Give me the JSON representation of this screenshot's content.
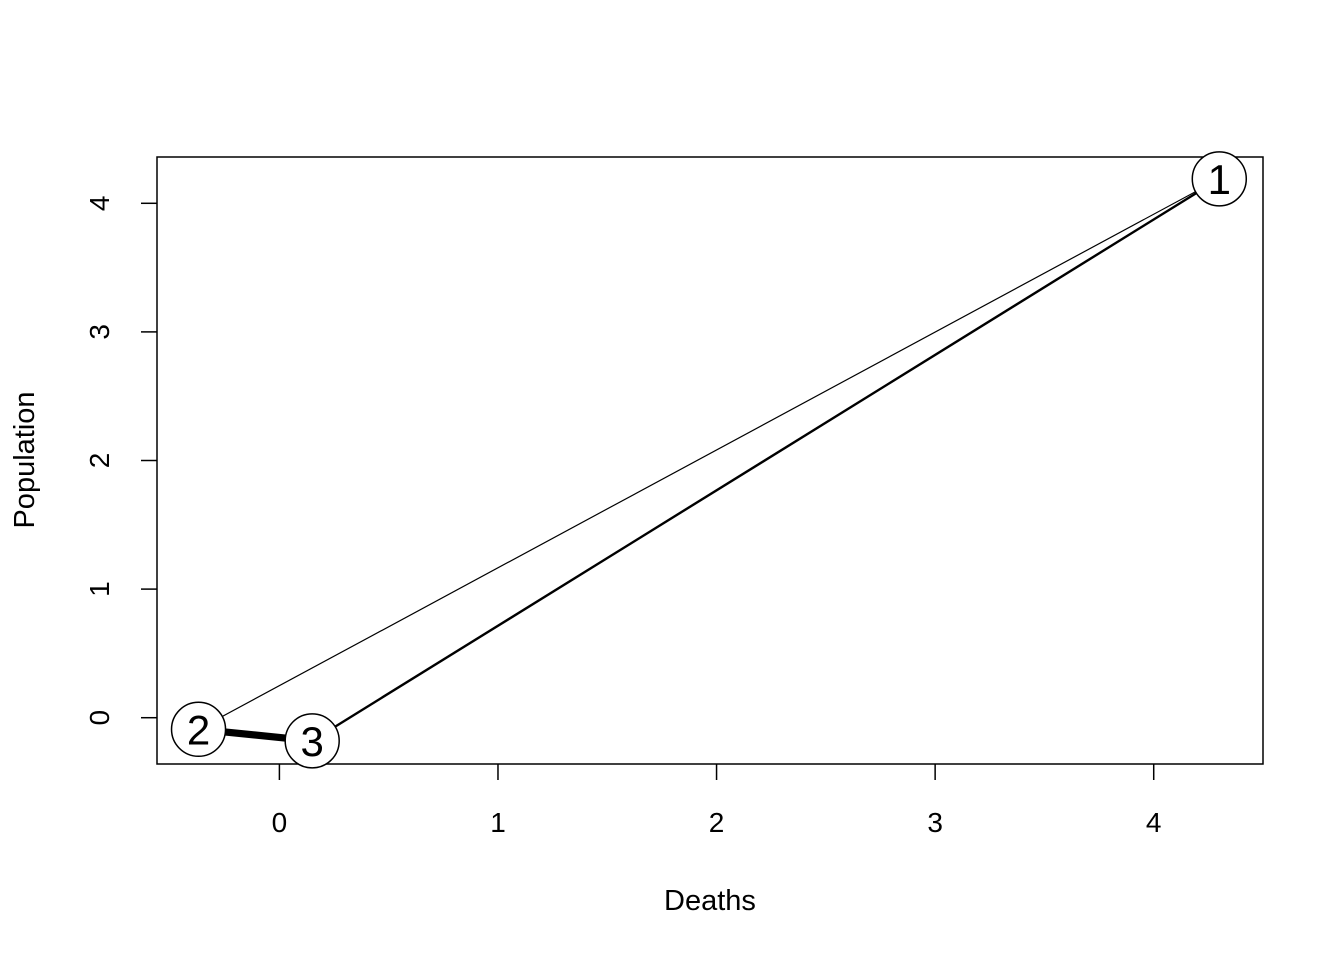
{
  "chart_data": {
    "type": "scatter",
    "xlabel": "Deaths",
    "ylabel": "Population",
    "xlim": [
      -0.56,
      4.5
    ],
    "ylim": [
      -0.36,
      4.36
    ],
    "x_ticks": [
      0,
      1,
      2,
      3,
      4
    ],
    "y_ticks": [
      0,
      1,
      2,
      3,
      4
    ],
    "grid": false,
    "nodes": [
      {
        "label": "1",
        "x": 4.3,
        "y": 4.19
      },
      {
        "label": "2",
        "x": -0.37,
        "y": -0.09
      },
      {
        "label": "3",
        "x": 0.15,
        "y": -0.18
      }
    ],
    "edges": [
      {
        "from": "1",
        "to": "2",
        "weight": 1
      },
      {
        "from": "1",
        "to": "3",
        "weight": 2
      },
      {
        "from": "2",
        "to": "3",
        "weight": 6
      }
    ]
  }
}
